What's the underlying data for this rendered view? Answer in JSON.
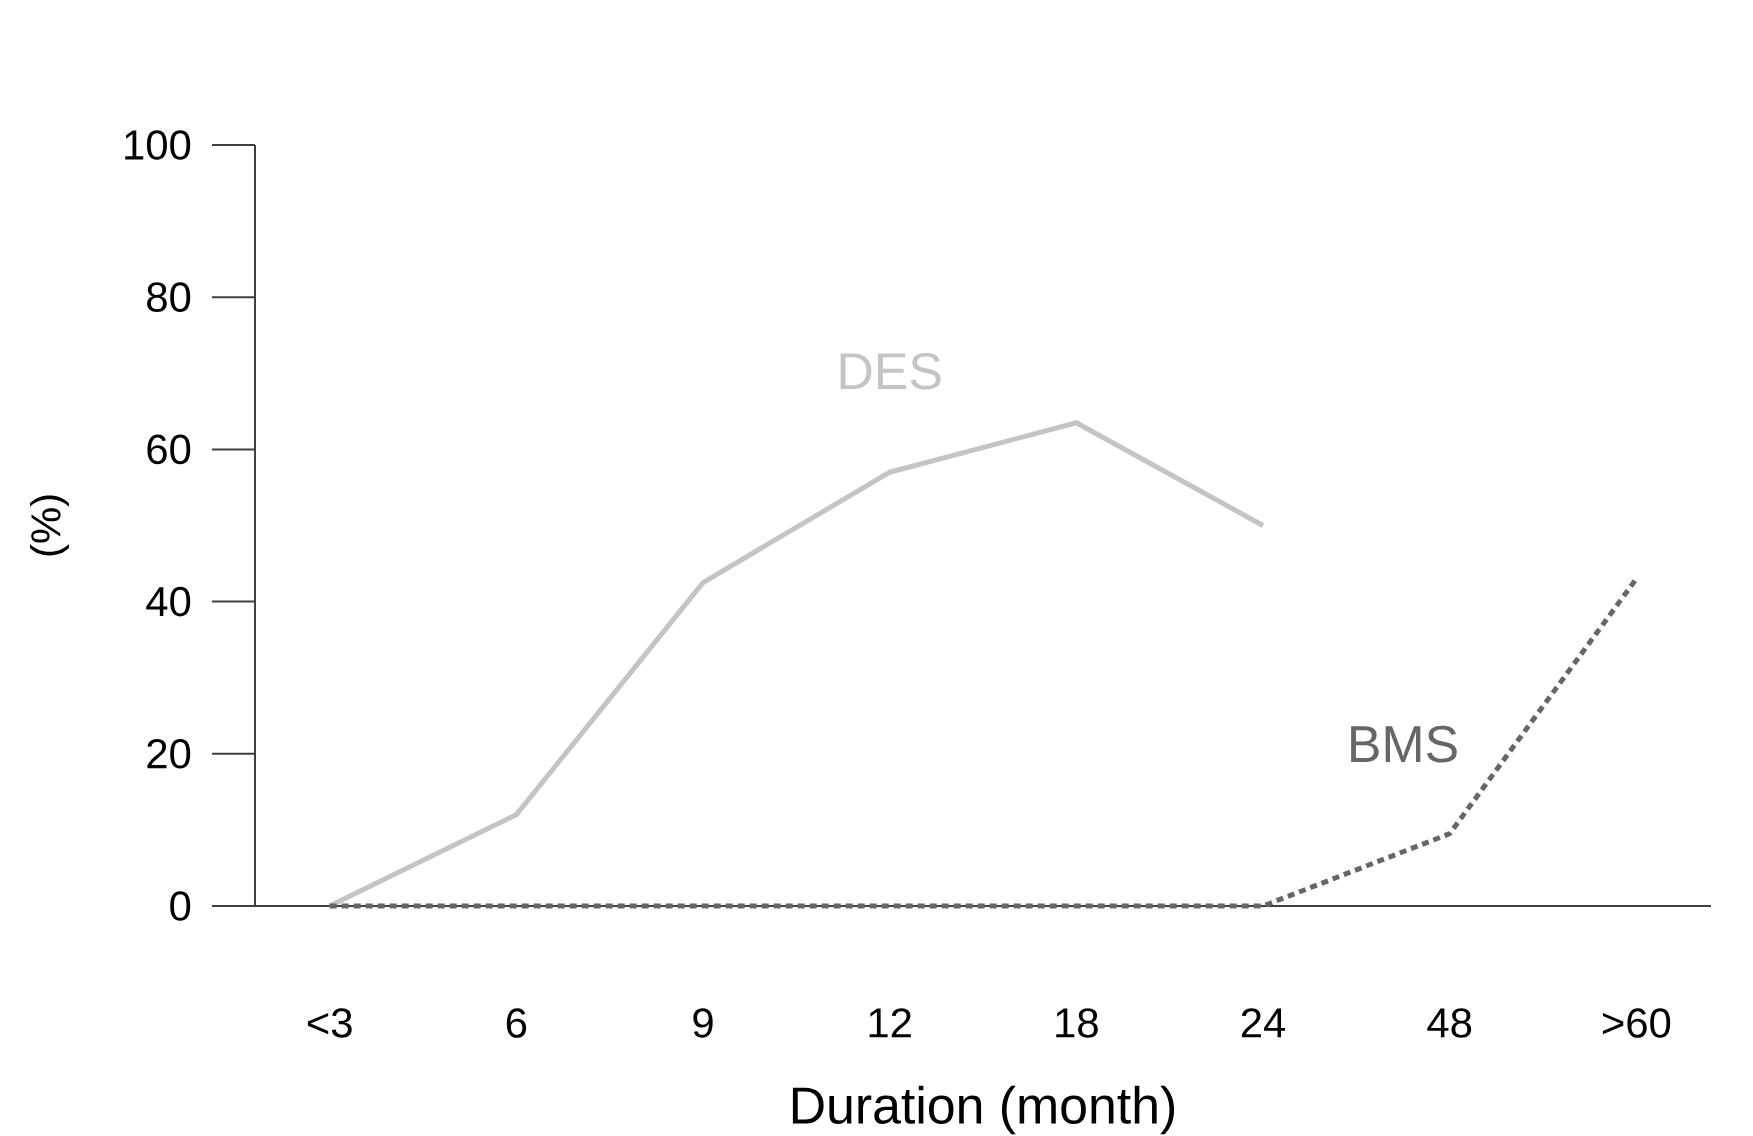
{
  "chart_data": {
    "type": "line",
    "xlabel": "Duration (month)",
    "ylabel": "(%)",
    "categories": [
      "<3",
      "6",
      "9",
      "12",
      "18",
      "24",
      "48",
      ">60"
    ],
    "ylim": [
      0,
      100
    ],
    "yticks": [
      0,
      20,
      40,
      60,
      80,
      100
    ],
    "grid": false,
    "legend": false,
    "marker": "none",
    "series": [
      {
        "name": "DES",
        "color": "#c4c4c4",
        "line_style": "solid",
        "values": [
          0,
          12,
          42.5,
          57,
          63.5,
          50,
          null,
          null
        ]
      },
      {
        "name": "BMS",
        "color": "#666666",
        "line_style": "dotted",
        "values": [
          0,
          0,
          0,
          0,
          0,
          0,
          9.5,
          43
        ]
      }
    ]
  }
}
